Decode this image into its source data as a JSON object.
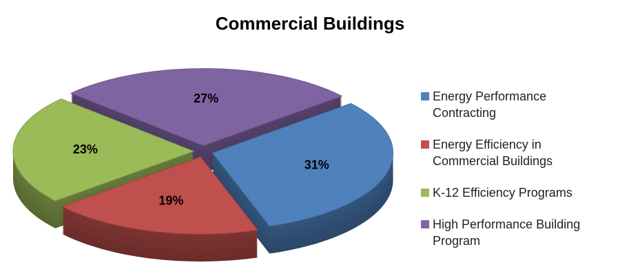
{
  "chart_data": {
    "type": "pie",
    "title": "Commercial Buildings",
    "categories": [
      "Energy Performance Contracting",
      "Energy Efficiency in Commercial Buildings",
      "K-12 Efficiency Programs",
      "High Performance Building Program"
    ],
    "values": [
      31,
      19,
      23,
      27
    ],
    "value_labels": [
      "31%",
      "19%",
      "23%",
      "27%"
    ],
    "colors": [
      "#4f81bd",
      "#c0504d",
      "#9bbb59",
      "#8064a2"
    ],
    "legend": "right"
  }
}
